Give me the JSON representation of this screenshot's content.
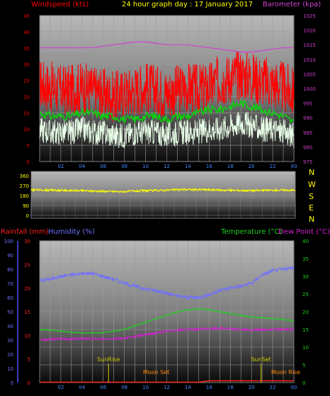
{
  "header": {
    "left_label": "Windspeed (kts)",
    "title": "24 hour graph day : 17 January 2017",
    "right_label": "Barometer (kpa)"
  },
  "colors": {
    "windspeed": "#ff0000",
    "wind_avg": "#00e000",
    "gust_white": "#e8ffe8",
    "barometer": "#d040d0",
    "wind_direction": "#ffff00",
    "humidity": "#7070ff",
    "temperature": "#20d020",
    "dew_point": "#d020d0",
    "rainfall": "#ff2020",
    "header_windspeed": "#ff0000",
    "header_title": "#ffff00",
    "header_barometer": "#d040d0",
    "sun_label": "#cccc00",
    "moon_label": "#ff8800"
  },
  "direction_labels": [
    "N",
    "W",
    "S",
    "E",
    "N"
  ],
  "lower_headers": {
    "rainfall": "Rainfall (mm)",
    "humidity": "Humidity (%)",
    "temperature": "Temperature (°C)",
    "dew_point": "Dew Point (°C)"
  },
  "events": {
    "sunrise": "SunRise",
    "sunset": "SunSet",
    "moonset": "Moon Set",
    "moonrise": "Moon Rise"
  },
  "chart_data": [
    {
      "type": "line",
      "name": "wind",
      "x_ticks": [
        "02",
        "04",
        "06",
        "08",
        "10",
        "12",
        "14",
        "16",
        "18",
        "20",
        "22",
        "00"
      ],
      "y_left_ticks": [
        "0",
        "5",
        "10",
        "15",
        "20",
        "25",
        "30",
        "35",
        "40",
        "45"
      ],
      "y_left_lim": [
        0,
        45
      ],
      "y_right_ticks": [
        "975",
        "980",
        "985",
        "990",
        "995",
        "1000",
        "1005",
        "1010",
        "1015",
        "1020",
        "1025"
      ],
      "y_right_lim": [
        975,
        1025
      ],
      "x_hours": [
        0,
        1,
        2,
        3,
        4,
        5,
        6,
        7,
        8,
        9,
        10,
        11,
        12,
        13,
        14,
        15,
        16,
        17,
        18,
        19,
        20,
        21,
        22,
        23,
        24
      ],
      "series": [
        {
          "key": "gust",
          "values": [
            24,
            23,
            22,
            22,
            23,
            22,
            21,
            20,
            21,
            22,
            23,
            22,
            21,
            22,
            23,
            22,
            23,
            25,
            26,
            27,
            26,
            25,
            24,
            23,
            21
          ]
        },
        {
          "key": "average",
          "values": [
            15,
            14,
            14,
            14,
            15,
            15,
            14,
            14,
            13,
            13,
            14,
            14,
            13,
            14,
            14,
            15,
            16,
            16,
            17,
            18,
            17,
            16,
            15,
            14,
            12
          ]
        },
        {
          "key": "lull",
          "values": [
            10,
            9,
            9,
            9,
            10,
            9,
            9,
            8,
            8,
            9,
            9,
            9,
            8,
            9,
            9,
            9,
            10,
            10,
            11,
            12,
            11,
            10,
            10,
            9,
            8
          ]
        },
        {
          "key": "barometer",
          "values": [
            1014,
            1014,
            1014,
            1014,
            1014,
            1014,
            1014.5,
            1015,
            1015.5,
            1016,
            1016,
            1015.5,
            1015,
            1015,
            1015,
            1014.5,
            1014,
            1013.5,
            1013,
            1012.5,
            1012.5,
            1013,
            1013.5,
            1014,
            1014
          ]
        }
      ]
    },
    {
      "type": "line",
      "name": "wind_direction",
      "y_ticks": [
        "0",
        "90",
        "180",
        "270",
        "360"
      ],
      "y_lim": [
        0,
        360
      ],
      "x_hours": [
        0,
        2,
        4,
        6,
        8,
        10,
        12,
        14,
        16,
        18,
        20,
        22,
        24
      ],
      "values": [
        232,
        228,
        225,
        220,
        215,
        222,
        228,
        235,
        232,
        228,
        225,
        228,
        230
      ]
    },
    {
      "type": "line",
      "name": "climate",
      "x_ticks": [
        "02",
        "04",
        "06",
        "08",
        "10",
        "12",
        "14",
        "16",
        "18",
        "20",
        "22",
        "00"
      ],
      "y_left_ticks": [
        "0",
        "10",
        "20",
        "30",
        "40",
        "50",
        "60",
        "70",
        "80",
        "90",
        "100"
      ],
      "y_left_lim": [
        0,
        100
      ],
      "y_mid_ticks": [
        "0",
        "5",
        "10",
        "15",
        "20",
        "25",
        "30"
      ],
      "y_mid_lim": [
        0,
        30
      ],
      "y_right_ticks": [
        "0",
        "5",
        "10",
        "15",
        "20",
        "25",
        "30",
        "35",
        "40"
      ],
      "y_right_lim": [
        0,
        40
      ],
      "x_hours": [
        0,
        1,
        2,
        3,
        4,
        5,
        6,
        7,
        8,
        9,
        10,
        11,
        12,
        13,
        14,
        15,
        16,
        17,
        18,
        19,
        20,
        21,
        22,
        23,
        24
      ],
      "series": [
        {
          "key": "humidity",
          "axis": "left",
          "values": [
            72,
            73,
            75,
            76,
            77,
            77,
            75,
            73,
            70,
            68,
            66,
            65,
            63,
            61,
            60,
            60,
            62,
            65,
            67,
            68,
            70,
            76,
            79,
            80,
            81
          ]
        },
        {
          "key": "temperature",
          "axis": "right",
          "values": [
            15,
            14.8,
            14.5,
            14.2,
            14,
            14,
            14.1,
            14.5,
            15,
            16,
            17,
            18,
            19,
            20,
            20.5,
            20.8,
            20.5,
            20,
            19.5,
            19,
            18.5,
            18.3,
            18,
            17.8,
            17.5
          ]
        },
        {
          "key": "dew_point",
          "axis": "right",
          "values": [
            12,
            12.2,
            12.3,
            12.3,
            12.4,
            12.3,
            12.3,
            12.4,
            12.5,
            13,
            13.5,
            14,
            14.5,
            14.8,
            15,
            15,
            15.2,
            15.3,
            15.2,
            15,
            14.8,
            14.9,
            15,
            15,
            15
          ]
        },
        {
          "key": "rainfall",
          "axis": "mid",
          "values": [
            0,
            0,
            0,
            0,
            0,
            0,
            0,
            0,
            0,
            0,
            0,
            0,
            0,
            0,
            0,
            0,
            0.3,
            0.3,
            0.3,
            0.3,
            0.3,
            0.3,
            0.3,
            0.3,
            0.3
          ]
        }
      ],
      "events_hours": {
        "sunrise": 6.5,
        "sunset": 20.9,
        "moonset": 11,
        "moonrise": 23.5
      }
    }
  ]
}
